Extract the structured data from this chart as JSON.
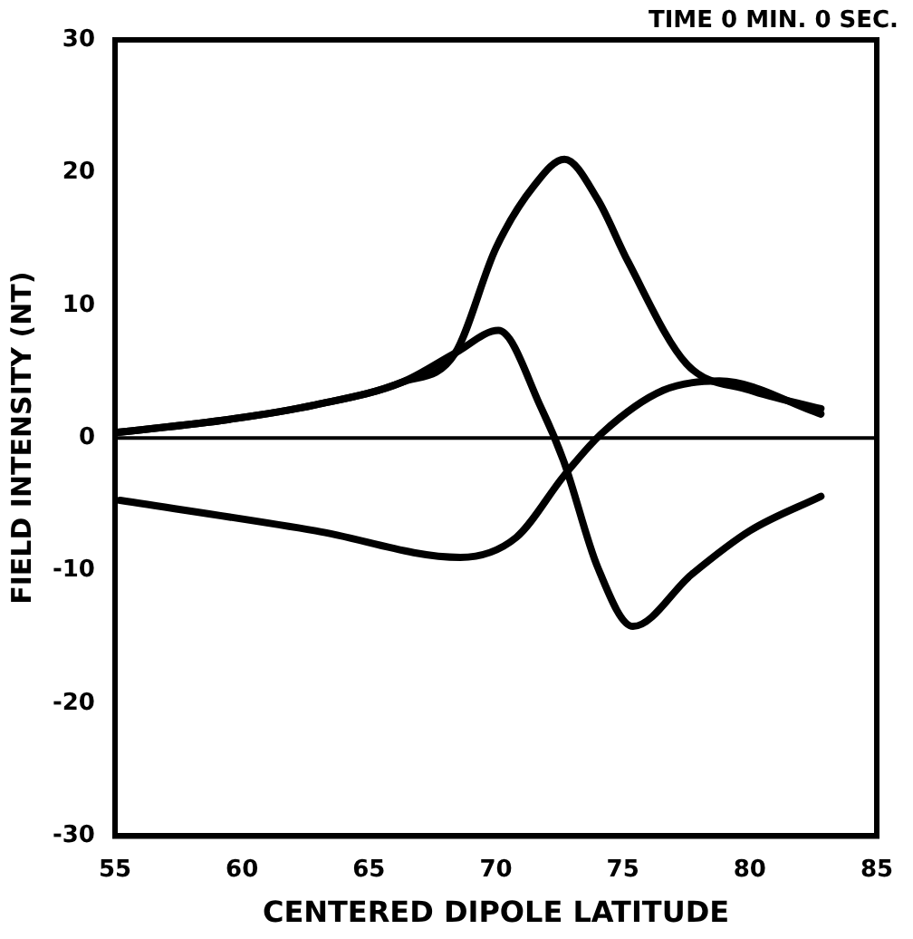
{
  "chart_data": {
    "type": "line",
    "xlabel": "CENTERED DIPOLE LATITUDE",
    "ylabel": "FIELD INTENSITY (NT)",
    "annotations": [
      "TIME 0 MIN. 0 SEC."
    ],
    "xlim": [
      55,
      85
    ],
    "xticks": [
      55,
      60,
      65,
      70,
      75,
      80,
      85
    ],
    "ylim": [
      -30,
      30
    ],
    "yticks": [
      -30,
      -20,
      -10,
      0,
      10,
      20,
      30
    ],
    "grid": false,
    "legend": false,
    "marker": "none",
    "line_style": "solid",
    "ref_lines": [
      {
        "axis": "y",
        "value": 0,
        "color": "#000000"
      }
    ],
    "series": [
      {
        "color": "#000000",
        "x": [
          55,
          59.5,
          62.9,
          66.3,
          68.4,
          70,
          71.5,
          72.7,
          74,
          75.2,
          77.5,
          80,
          82.8
        ],
        "values": [
          0.4,
          1.4,
          2.5,
          4.2,
          6.4,
          14.3,
          19,
          21,
          18,
          13.3,
          5.6,
          3.6,
          2.2
        ]
      },
      {
        "color": "#000000",
        "x": [
          55,
          59.5,
          62.9,
          66.3,
          68.4,
          70.1,
          71.8,
          72.7,
          74,
          75.4,
          77.7,
          80,
          82.8
        ],
        "values": [
          0.4,
          1.4,
          2.5,
          4.2,
          6.4,
          8.1,
          2.2,
          -1.9,
          -9.7,
          -14.2,
          -10.3,
          -7,
          -4.4
        ]
      },
      {
        "color": "#000000",
        "x": [
          55.2,
          62.9,
          68.6,
          70.8,
          72.7,
          74.2,
          76.6,
          78.8,
          82.8
        ],
        "values": [
          -4.7,
          -7,
          -9,
          -7.5,
          -2.8,
          0.4,
          3.6,
          4.3,
          1.8
        ]
      }
    ]
  }
}
